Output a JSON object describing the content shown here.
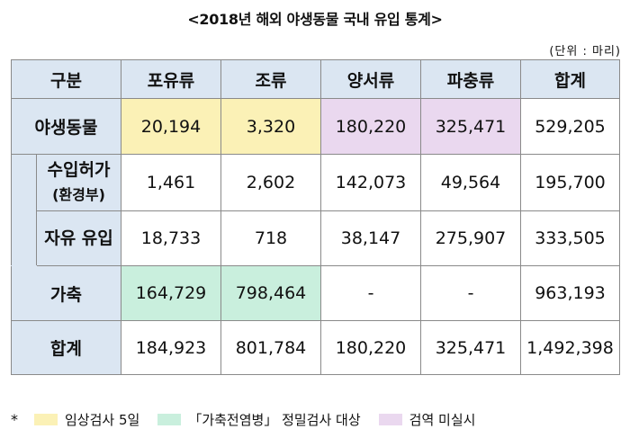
{
  "title": "<2018년 해외 야생동물 국내 유입 통계>",
  "unit": "(단위 : 마리)",
  "table": {
    "headers": [
      "구분",
      "포유류",
      "조류",
      "양서류",
      "파충류",
      "합계"
    ],
    "rows": {
      "wild": {
        "label": "야생동물",
        "values": [
          "20,194",
          "3,320",
          "180,220",
          "325,471",
          "529,205"
        ]
      },
      "permit": {
        "label_line1": "수입허가",
        "label_line2": "(환경부)",
        "values": [
          "1,461",
          "2,602",
          "142,073",
          "49,564",
          "195,700"
        ]
      },
      "free": {
        "label": "자유 유입",
        "values": [
          "18,733",
          "718",
          "38,147",
          "275,907",
          "333,505"
        ]
      },
      "livestock": {
        "label": "가축",
        "values": [
          "164,729",
          "798,464",
          "-",
          "-",
          "963,193"
        ]
      },
      "total": {
        "label": "합계",
        "values": [
          "184,923",
          "801,784",
          "180,220",
          "325,471",
          "1,492,398"
        ]
      }
    }
  },
  "legend": {
    "marker": "*",
    "items": [
      {
        "label": "임상검사 5일",
        "color": "#fbf1b6"
      },
      {
        "label": "「가축전염병」 정밀검사 대상",
        "color": "#c9efdd"
      },
      {
        "label": "검역 미실시",
        "color": "#ead8ef"
      }
    ]
  }
}
